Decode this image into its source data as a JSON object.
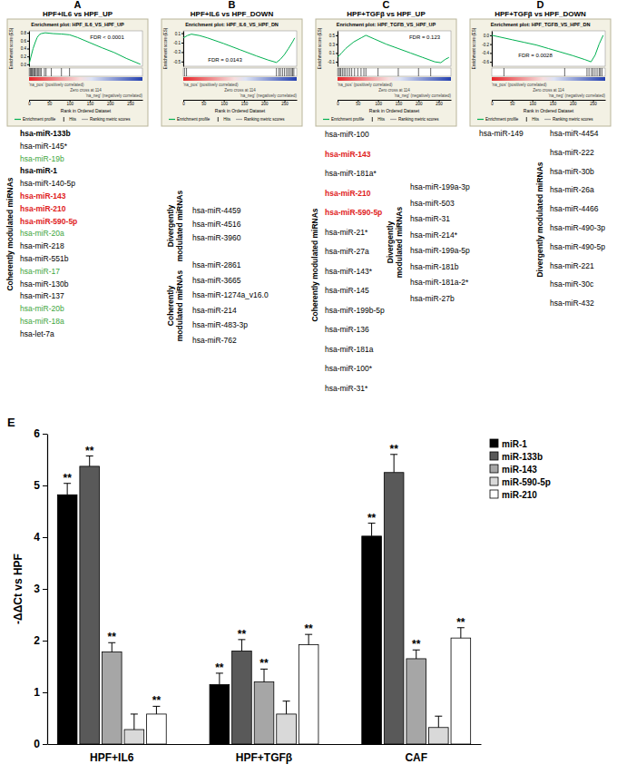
{
  "chart_data": [
    {
      "type": "line",
      "panel": "A",
      "heading": "HPF+IL6 vs HPF_UP",
      "title": "Enrichment plot: HPF_IL6_VS_HPF_UP",
      "fdr_label": "FDR < 0.0001",
      "ylabel": "Enrichment score (ES)",
      "xlabel": "Rank in Ordered Dataset",
      "x": [
        0,
        5,
        10,
        15,
        20,
        25,
        30,
        40,
        60,
        80,
        100,
        120,
        150,
        180,
        210,
        240,
        275
      ],
      "series": [
        {
          "name": "Enrichment profile",
          "color": "#00b050",
          "values": [
            0,
            0.2,
            0.4,
            0.55,
            0.68,
            0.75,
            0.78,
            0.8,
            0.78,
            0.77,
            0.75,
            0.68,
            0.55,
            0.42,
            0.3,
            0.15,
            0
          ]
        },
        {
          "name": "Hits",
          "type": "rug",
          "color": "#000000",
          "x": [
            2,
            4,
            6,
            8,
            11,
            13,
            15,
            18,
            21,
            24,
            27,
            30,
            38,
            42,
            55,
            80,
            100
          ]
        }
      ],
      "metric_label": "Ranking metric scores",
      "annotations": [
        "'na_pos' (positively correlated)",
        "Zero cross at 114",
        "'na_neg' (negatively correlated)"
      ],
      "xlim": [
        0,
        280
      ],
      "xticks": [
        0,
        50,
        100,
        150,
        200,
        250
      ],
      "ylim": [
        -0.05,
        0.85
      ],
      "yticks": [
        {
          "value": 0,
          "label": "0.0"
        },
        0.2,
        0.4,
        0.6,
        0.8
      ],
      "legend": "bottom"
    },
    {
      "type": "line",
      "panel": "B",
      "heading": "HPF+IL6 vs HPF_DOWN",
      "title": "Enrichment plot: HPF_IL6_VS_HPF_DN",
      "fdr_label": "FDR = 0.0143",
      "ylabel": "Enrichment score (ES)",
      "xlabel": "Rank in Ordered Dataset",
      "x": [
        0,
        10,
        20,
        40,
        60,
        100,
        140,
        180,
        210,
        230,
        240,
        250,
        260,
        270,
        275
      ],
      "series": [
        {
          "name": "Enrichment profile",
          "color": "#00b050",
          "values": [
            0,
            0.05,
            0.08,
            0.05,
            0,
            -0.12,
            -0.25,
            -0.38,
            -0.47,
            -0.52,
            -0.45,
            -0.35,
            -0.22,
            -0.08,
            0
          ]
        },
        {
          "name": "Hits",
          "type": "rug",
          "color": "#000000",
          "x": [
            3,
            8,
            230,
            236,
            240,
            245,
            250,
            255,
            259,
            263,
            267,
            270,
            273
          ]
        }
      ],
      "metric_label": "Ranking metric scores",
      "annotations": [
        "'na_pos' (positively correlated)",
        "Zero cross at 114",
        "'na_neg' (negatively correlated)"
      ],
      "xlim": [
        0,
        280
      ],
      "xticks": [
        0,
        50,
        100,
        150,
        200,
        250
      ],
      "ylim": [
        -0.6,
        0.15
      ],
      "yticks": [
        -0.5,
        -0.3,
        -0.1,
        0.1
      ],
      "legend": "bottom"
    },
    {
      "type": "line",
      "panel": "C",
      "heading": "HPF+TGFβ vs HPF_UP",
      "title": "Enrichment plot: HPF_TGFB_VS_HPF_UP",
      "fdr_label": "FDR = 0.123",
      "ylabel": "Enrichment score (ES)",
      "xlabel": "Rank in Ordered Dataset",
      "x": [
        0,
        10,
        20,
        40,
        60,
        70,
        90,
        120,
        150,
        180,
        210,
        240,
        255,
        265,
        275
      ],
      "series": [
        {
          "name": "Enrichment profile",
          "color": "#00b050",
          "values": [
            0,
            0.1,
            0.2,
            0.35,
            0.45,
            0.5,
            0.42,
            0.3,
            0.2,
            0.1,
            0,
            -0.1,
            -0.12,
            -0.05,
            0
          ]
        },
        {
          "name": "Hits",
          "type": "rug",
          "color": "#000000",
          "x": [
            2,
            5,
            8,
            12,
            16,
            20,
            25,
            30,
            35,
            42,
            50,
            58,
            65,
            70,
            100,
            150,
            200,
            230
          ]
        }
      ],
      "metric_label": "Ranking metric scores",
      "annotations": [
        "'na_pos' (positively correlated)",
        "Zero cross at 114",
        "'na_neg' (negatively correlated)"
      ],
      "xlim": [
        0,
        280
      ],
      "xticks": [
        0,
        50,
        100,
        150,
        200,
        250
      ],
      "ylim": [
        -0.2,
        0.6
      ],
      "yticks": [
        -0.1,
        0.1,
        0.3,
        0.5
      ],
      "legend": "bottom"
    },
    {
      "type": "line",
      "panel": "D",
      "heading": "HPF+TGFβ vs HPF_DOWN",
      "title": "Enrichment plot: HPF_TGFB_VS_HPF_DN",
      "fdr_label": "FDR = 0.0028",
      "ylabel": "Enrichment score (ES)",
      "xlabel": "Rank in Ordered Dataset",
      "x": [
        0,
        20,
        50,
        80,
        110,
        140,
        170,
        200,
        230,
        245,
        255,
        265,
        275
      ],
      "series": [
        {
          "name": "Enrichment profile",
          "color": "#00b050",
          "values": [
            0,
            -0.04,
            -0.1,
            -0.16,
            -0.22,
            -0.3,
            -0.38,
            -0.46,
            -0.55,
            -0.6,
            -0.45,
            -0.2,
            0
          ]
        },
        {
          "name": "Hits",
          "type": "rug",
          "color": "#000000",
          "x": [
            30,
            180,
            235,
            240,
            246,
            250,
            255,
            260,
            265,
            268,
            272
          ]
        }
      ],
      "metric_label": "Ranking metric scores",
      "annotations": [
        "'na_pos' (positively correlated)",
        "Zero cross at 114",
        "'na_neg' (negatively correlated)"
      ],
      "xlim": [
        0,
        280
      ],
      "xticks": [
        0,
        50,
        100,
        150,
        200,
        250
      ],
      "ylim": [
        -0.7,
        0.1
      ],
      "yticks": [
        -0.6,
        -0.4,
        -0.2,
        {
          "value": 0,
          "label": "0.0"
        }
      ],
      "legend": "bottom"
    },
    {
      "type": "bar",
      "panel": "E",
      "ylabel": "-ΔΔCt vs HPF",
      "categories": [
        "HPF+IL6",
        "HPF+TGFβ",
        "CAF"
      ],
      "ylim": [
        0,
        6
      ],
      "yticks": [
        0,
        1,
        2,
        3,
        4,
        5,
        6
      ],
      "legend": "upper right",
      "series": [
        {
          "name": "miR-1",
          "color": "#000000",
          "values": [
            4.82,
            1.15,
            4.02
          ],
          "errors": [
            0.22,
            0.22,
            0.25
          ],
          "significance": [
            "**",
            "**",
            "**"
          ]
        },
        {
          "name": "miR-133b",
          "color": "#595959",
          "values": [
            5.37,
            1.8,
            5.25
          ],
          "errors": [
            0.2,
            0.22,
            0.35
          ],
          "significance": [
            "**",
            "**",
            "**"
          ]
        },
        {
          "name": "miR-143",
          "color": "#a6a6a6",
          "values": [
            1.78,
            1.2,
            1.65
          ],
          "errors": [
            0.18,
            0.25,
            0.17
          ],
          "significance": [
            "**",
            "**",
            "**"
          ]
        },
        {
          "name": "miR-590-5p",
          "color": "#d9d9d9",
          "values": [
            0.28,
            0.58,
            0.32
          ],
          "errors": [
            0.3,
            0.25,
            0.22
          ],
          "significance": [
            null,
            null,
            null
          ]
        },
        {
          "name": "miR-210",
          "color": "#ffffff",
          "values": [
            0.58,
            1.92,
            2.05
          ],
          "errors": [
            0.15,
            0.2,
            0.2
          ],
          "significance": [
            "**",
            "**",
            "**"
          ]
        }
      ]
    }
  ],
  "mirna_lists": [
    {
      "groups": [
        {
          "label_lines": [
            "Coherently modulated miRNAs"
          ],
          "items": [
            {
              "text": "hsa-miR-133b",
              "color": "#000000",
              "weight": "bold"
            },
            {
              "text": "hsa-miR-145*",
              "color": "#000000",
              "weight": "normal"
            },
            {
              "text": "hsa-miR-19b",
              "color": "#3da53d",
              "weight": "normal"
            },
            {
              "text": "hsa-miR-1",
              "color": "#000000",
              "weight": "bold"
            },
            {
              "text": "hsa-miR-140-5p",
              "color": "#000000",
              "weight": "normal"
            },
            {
              "text": "hsa-miR-143",
              "color": "#e0201b",
              "weight": "bold"
            },
            {
              "text": "hsa-miR-210",
              "color": "#e0201b",
              "weight": "bold"
            },
            {
              "text": "hsa-miR-590-5p",
              "color": "#e0201b",
              "weight": "bold"
            },
            {
              "text": "hsa-miR-20a",
              "color": "#3da53d",
              "weight": "normal"
            },
            {
              "text": "hsa-miR-218",
              "color": "#000000",
              "weight": "normal"
            },
            {
              "text": "hsa-miR-551b",
              "color": "#000000",
              "weight": "normal"
            },
            {
              "text": "hsa-miR-17",
              "color": "#3da53d",
              "weight": "normal"
            },
            {
              "text": "hsa-miR-130b",
              "color": "#000000",
              "weight": "normal"
            },
            {
              "text": "hsa-miR-137",
              "color": "#000000",
              "weight": "normal"
            },
            {
              "text": "hsa-miR-20b",
              "color": "#3da53d",
              "weight": "normal"
            },
            {
              "text": "hsa-miR-18a",
              "color": "#3da53d",
              "weight": "normal"
            },
            {
              "text": "hsa-let-7a",
              "color": "#000000",
              "weight": "normal"
            }
          ]
        }
      ]
    },
    {
      "groups": [
        {
          "label_lines": [
            "Divergently",
            "modulated miRNAs"
          ],
          "items": [
            {
              "text": "hsa-miR-4459",
              "color": "#000000",
              "weight": "normal"
            },
            {
              "text": "hsa-miR-4516",
              "color": "#000000",
              "weight": "normal"
            },
            {
              "text": "hsa-miR-3960",
              "color": "#000000",
              "weight": "normal"
            }
          ]
        },
        {
          "label_lines": [
            "Coherently",
            "modulated miRNAs"
          ],
          "items": [
            {
              "text": "hsa-miR-2861",
              "color": "#000000",
              "weight": "normal"
            },
            {
              "text": "hsa-miR-3665",
              "color": "#000000",
              "weight": "normal"
            },
            {
              "text": "hsa-miR-1274a_v16.0",
              "color": "#000000",
              "weight": "normal"
            },
            {
              "text": "hsa-miR-214",
              "color": "#000000",
              "weight": "normal"
            },
            {
              "text": "hsa-miR-483-3p",
              "color": "#000000",
              "weight": "normal"
            },
            {
              "text": "hsa-miR-762",
              "color": "#000000",
              "weight": "normal"
            }
          ]
        }
      ]
    },
    {
      "groups": [
        {
          "label_lines": [
            "Coherently modulated miRNAs"
          ],
          "items": [
            {
              "text": "hsa-miR-100",
              "color": "#000000",
              "weight": "normal"
            },
            {
              "text": "hsa-miR-143",
              "color": "#e0201b",
              "weight": "bold"
            },
            {
              "text": "hsa-miR-181a*",
              "color": "#000000",
              "weight": "normal"
            },
            {
              "text": "hsa-miR-210",
              "color": "#e0201b",
              "weight": "bold"
            },
            {
              "text": "hsa-miR-590-5p",
              "color": "#e0201b",
              "weight": "bold"
            },
            {
              "text": "hsa-miR-21*",
              "color": "#000000",
              "weight": "normal"
            },
            {
              "text": "hsa-miR-27a",
              "color": "#000000",
              "weight": "normal"
            },
            {
              "text": "hsa-miR-143*",
              "color": "#000000",
              "weight": "normal"
            },
            {
              "text": "hsa-miR-145",
              "color": "#000000",
              "weight": "normal"
            },
            {
              "text": "hsa-miR-199b-5p",
              "color": "#000000",
              "weight": "normal"
            },
            {
              "text": "hsa-miR-136",
              "color": "#000000",
              "weight": "normal"
            },
            {
              "text": "hsa-miR-181a",
              "color": "#000000",
              "weight": "normal"
            },
            {
              "text": "hsa-miR-100*",
              "color": "#000000",
              "weight": "normal"
            },
            {
              "text": "hsa-miR-31*",
              "color": "#000000",
              "weight": "normal"
            }
          ]
        },
        {
          "label_lines": [
            "Divergently",
            "modulated miRNAs"
          ],
          "items": [
            {
              "text": "hsa-miR-199a-3p",
              "color": "#000000",
              "weight": "normal"
            },
            {
              "text": "hsa-miR-503",
              "color": "#000000",
              "weight": "normal"
            },
            {
              "text": "hsa-miR-31",
              "color": "#000000",
              "weight": "normal"
            },
            {
              "text": "hsa-miR-214*",
              "color": "#000000",
              "weight": "normal"
            },
            {
              "text": "hsa-miR-199a-5p",
              "color": "#000000",
              "weight": "normal"
            },
            {
              "text": "hsa-miR-181b",
              "color": "#000000",
              "weight": "normal"
            },
            {
              "text": "hsa-miR-181a-2*",
              "color": "#000000",
              "weight": "normal"
            },
            {
              "text": "hsa-miR-27b",
              "color": "#000000",
              "weight": "normal"
            }
          ]
        }
      ]
    },
    {
      "groups": [
        {
          "items": [
            {
              "text": "hsa-miR-149",
              "color": "#000000",
              "weight": "normal"
            }
          ]
        },
        {
          "label_lines": [
            "Divergently modulated miRNAs"
          ],
          "items": [
            {
              "text": "hsa-miR-4454",
              "color": "#000000",
              "weight": "normal"
            },
            {
              "text": "hsa-miR-222",
              "color": "#000000",
              "weight": "normal"
            },
            {
              "text": "hsa-miR-30b",
              "color": "#000000",
              "weight": "normal"
            },
            {
              "text": "hsa-miR-26a",
              "color": "#000000",
              "weight": "normal"
            },
            {
              "text": "hsa-miR-4466",
              "color": "#000000",
              "weight": "normal"
            },
            {
              "text": "hsa-miR-490-3p",
              "color": "#000000",
              "weight": "normal"
            },
            {
              "text": "hsa-miR-490-5p",
              "color": "#000000",
              "weight": "normal"
            },
            {
              "text": "hsa-miR-221",
              "color": "#000000",
              "weight": "normal"
            },
            {
              "text": "hsa-miR-30c",
              "color": "#000000",
              "weight": "normal"
            },
            {
              "text": "hsa-miR-432",
              "color": "#000000",
              "weight": "normal"
            }
          ]
        }
      ]
    }
  ]
}
